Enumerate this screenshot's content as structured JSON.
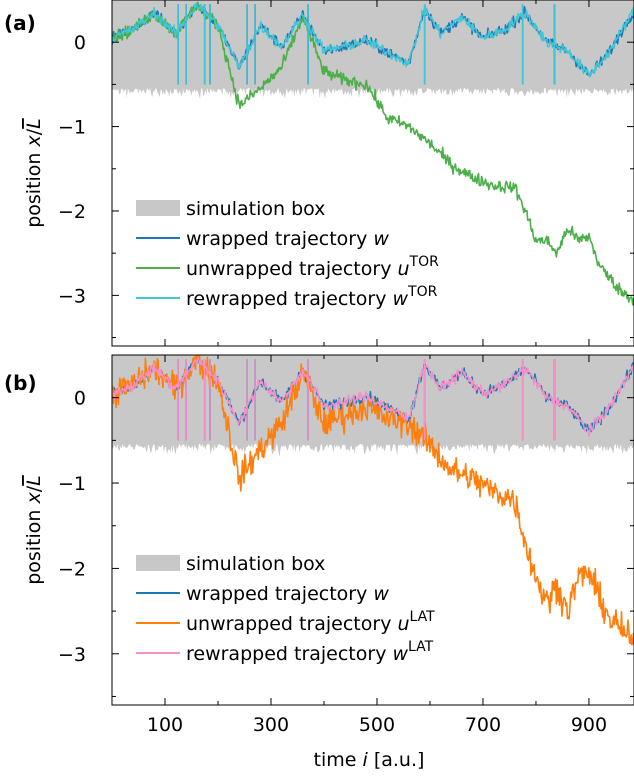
{
  "chart_data": [
    {
      "panel": "(a)",
      "type": "line",
      "ylabel": "position x/L̄",
      "ylabel_parts": {
        "prefix": "position ",
        "var": "x",
        "sep": "/",
        "unit": "L"
      },
      "xlabel": "",
      "xlim": [
        0,
        985
      ],
      "ylim": [
        -3.6,
        0.5
      ],
      "yticks": [
        0,
        -1,
        -2,
        -3
      ],
      "ytick_labels": [
        "0",
        "−1",
        "−2",
        "−3"
      ],
      "xticks": [
        100,
        300,
        500,
        700,
        900
      ],
      "xtick_labels": [],
      "grid": false,
      "legend_position": "lower-left",
      "box": {
        "name": "simulation box",
        "lower": -0.5,
        "upper": 0.5,
        "color": "#c8c8c8"
      },
      "legend": [
        {
          "kind": "band",
          "text": "simulation box",
          "color": "#c8c8c8"
        },
        {
          "kind": "line",
          "text": "wrapped trajectory ",
          "var": "w",
          "sup": "",
          "color": "#1f77b4"
        },
        {
          "kind": "line",
          "text": "unwrapped trajectory ",
          "var": "u",
          "sup": "TOR",
          "color": "#4daf4a"
        },
        {
          "kind": "line",
          "text": "rewrapped trajectory ",
          "var": "w",
          "sup": "TOR",
          "color": "#41c6d6"
        }
      ],
      "series": [
        {
          "name": "wrapped trajectory w",
          "color": "#1f77b4",
          "wrapped": true,
          "x": [
            0,
            40,
            80,
            120,
            160,
            200,
            240,
            280,
            320,
            360,
            400,
            440,
            480,
            520,
            560,
            590,
            620,
            660,
            700,
            740,
            780,
            820,
            860,
            900,
            940,
            985
          ],
          "y": [
            0.05,
            0.15,
            0.35,
            0.1,
            0.45,
            0.2,
            -0.3,
            0.2,
            -0.05,
            0.32,
            -0.1,
            -0.05,
            0.02,
            -0.12,
            -0.25,
            0.4,
            0.1,
            0.3,
            0.05,
            0.15,
            0.35,
            0.0,
            -0.1,
            -0.4,
            -0.1,
            0.38
          ]
        },
        {
          "name": "unwrapped trajectory u TOR",
          "color": "#4daf4a",
          "wrapped": false,
          "x": [
            0,
            40,
            80,
            120,
            160,
            200,
            240,
            280,
            320,
            360,
            400,
            440,
            480,
            520,
            560,
            600,
            640,
            680,
            720,
            760,
            780,
            800,
            820,
            840,
            860,
            880,
            900,
            920,
            940,
            960,
            985
          ],
          "y": [
            0.05,
            0.15,
            0.35,
            0.1,
            0.45,
            0.2,
            -0.75,
            -0.55,
            -0.3,
            0.3,
            -0.35,
            -0.45,
            -0.5,
            -0.9,
            -1.0,
            -1.2,
            -1.45,
            -1.6,
            -1.7,
            -1.72,
            -2.0,
            -2.35,
            -2.35,
            -2.5,
            -2.2,
            -2.35,
            -2.3,
            -2.65,
            -2.8,
            -2.95,
            -3.05
          ]
        },
        {
          "name": "rewrapped trajectory w TOR",
          "color": "#41c6d6",
          "wrapped": true,
          "x": [
            0,
            40,
            80,
            120,
            160,
            200,
            240,
            280,
            320,
            360,
            400,
            440,
            480,
            520,
            560,
            590,
            620,
            660,
            700,
            740,
            780,
            820,
            860,
            900,
            940,
            985
          ],
          "y": [
            0.05,
            0.15,
            0.35,
            0.1,
            0.45,
            0.2,
            -0.3,
            0.2,
            -0.05,
            0.32,
            -0.1,
            -0.05,
            0.02,
            -0.12,
            -0.25,
            0.4,
            0.1,
            0.3,
            0.05,
            0.15,
            0.35,
            0.0,
            -0.1,
            -0.4,
            -0.1,
            0.38
          ]
        }
      ]
    },
    {
      "panel": "(b)",
      "type": "line",
      "ylabel": "position x/L̄",
      "ylabel_parts": {
        "prefix": "position ",
        "var": "x",
        "sep": "/",
        "unit": "L"
      },
      "xlabel": "time i [a.u.]",
      "xlabel_parts": {
        "prefix": "time ",
        "var": "i",
        "suffix": " [a.u.]"
      },
      "xlim": [
        0,
        985
      ],
      "ylim": [
        -3.6,
        0.5
      ],
      "yticks": [
        0,
        -1,
        -2,
        -3
      ],
      "ytick_labels": [
        "0",
        "−1",
        "−2",
        "−3"
      ],
      "xticks": [
        100,
        300,
        500,
        700,
        900
      ],
      "xtick_labels": [
        "100",
        "300",
        "500",
        "700",
        "900"
      ],
      "grid": false,
      "legend_position": "lower-left",
      "box": {
        "name": "simulation box",
        "lower": -0.5,
        "upper": 0.5,
        "color": "#c8c8c8"
      },
      "legend": [
        {
          "kind": "band",
          "text": "simulation box",
          "color": "#c8c8c8"
        },
        {
          "kind": "line",
          "text": "wrapped trajectory ",
          "var": "w",
          "sup": "",
          "color": "#1f77b4"
        },
        {
          "kind": "line",
          "text": "unwrapped trajectory ",
          "var": "u",
          "sup": "LAT",
          "color": "#ff7f0e"
        },
        {
          "kind": "line",
          "text": "rewrapped trajectory ",
          "var": "w",
          "sup": "LAT",
          "color": "#f78fc8"
        }
      ],
      "series": [
        {
          "name": "wrapped trajectory w",
          "color": "#1f77b4",
          "wrapped": true,
          "x": [
            0,
            40,
            80,
            120,
            160,
            200,
            240,
            280,
            320,
            360,
            400,
            440,
            480,
            520,
            560,
            590,
            620,
            660,
            700,
            740,
            780,
            820,
            860,
            900,
            940,
            985
          ],
          "y": [
            0.05,
            0.15,
            0.35,
            0.1,
            0.45,
            0.2,
            -0.3,
            0.2,
            -0.05,
            0.32,
            -0.1,
            -0.05,
            0.02,
            -0.12,
            -0.25,
            0.4,
            0.1,
            0.3,
            0.05,
            0.15,
            0.35,
            0.0,
            -0.1,
            -0.4,
            -0.1,
            0.38
          ]
        },
        {
          "name": "unwrapped trajectory u LAT",
          "color": "#ff7f0e",
          "wrapped": false,
          "x": [
            0,
            40,
            80,
            120,
            160,
            200,
            240,
            280,
            320,
            360,
            400,
            440,
            480,
            520,
            560,
            600,
            640,
            680,
            720,
            760,
            780,
            800,
            820,
            840,
            860,
            880,
            900,
            920,
            940,
            960,
            985
          ],
          "y": [
            0.05,
            0.15,
            0.35,
            0.1,
            0.45,
            0.2,
            -0.95,
            -0.6,
            -0.3,
            0.3,
            -0.3,
            -0.2,
            -0.1,
            -0.25,
            -0.3,
            -0.55,
            -0.85,
            -0.95,
            -1.1,
            -1.2,
            -1.7,
            -2.1,
            -2.4,
            -2.2,
            -2.5,
            -2.1,
            -2.05,
            -2.35,
            -2.6,
            -2.7,
            -2.9
          ]
        },
        {
          "name": "rewrapped trajectory w LAT",
          "color": "#f78fc8",
          "wrapped": true,
          "x": [
            0,
            40,
            80,
            120,
            160,
            200,
            240,
            280,
            320,
            360,
            400,
            440,
            480,
            520,
            560,
            590,
            620,
            660,
            700,
            740,
            780,
            820,
            860,
            900,
            940,
            985
          ],
          "y": [
            0.05,
            0.15,
            0.35,
            0.1,
            0.45,
            0.2,
            -0.3,
            0.2,
            -0.05,
            0.32,
            -0.1,
            -0.05,
            0.02,
            -0.12,
            -0.25,
            0.4,
            0.1,
            0.3,
            0.05,
            0.15,
            0.35,
            0.0,
            -0.1,
            -0.4,
            -0.1,
            0.38
          ]
        }
      ]
    }
  ]
}
